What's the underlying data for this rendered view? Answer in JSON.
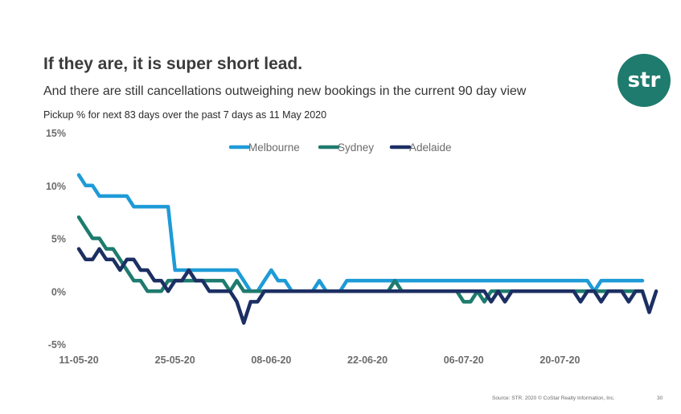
{
  "slide": {
    "title": "If they are, it is super short lead.",
    "subtitle": "And there are still cancellations outweighing new bookings in the current 90 day view",
    "caption": "Pickup % for next 83 days over the past 7 days as 11 May 2020",
    "logo_text": "str",
    "logo_color": "#1e7b6e",
    "source": "Source: STR. 2020 © CoStar Realty Information, Inc.",
    "page_number": "30"
  },
  "chart_data": {
    "type": "line",
    "title": "",
    "xlabel": "",
    "ylabel": "",
    "ylim": [
      -5,
      15
    ],
    "yticks": [
      "15%",
      "10%",
      "5%",
      "0%",
      "-5%"
    ],
    "yticks_values": [
      15,
      10,
      5,
      0,
      -5
    ],
    "x_tick_labels": [
      "11-05-20",
      "25-05-20",
      "08-06-20",
      "22-06-20",
      "06-07-20",
      "20-07-20"
    ],
    "x_range": [
      "11-05-20",
      "01-08-20"
    ],
    "grid": false,
    "legend_position": "top-center",
    "series": [
      {
        "name": "Melbourne",
        "color": "#1e9bd7",
        "values": [
          11,
          10,
          10,
          9,
          9,
          9,
          9,
          9,
          8,
          8,
          8,
          8,
          8,
          8,
          2,
          2,
          2,
          2,
          2,
          2,
          2,
          2,
          2,
          2,
          1,
          0,
          0,
          1,
          2,
          1,
          1,
          0,
          0,
          0,
          0,
          1,
          0,
          0,
          0,
          1,
          1,
          1,
          1,
          1,
          1,
          1,
          1,
          1,
          1,
          1,
          1,
          1,
          1,
          1,
          1,
          1,
          1,
          1,
          1,
          1,
          1,
          1,
          1,
          1,
          1,
          1,
          1,
          1,
          1,
          1,
          1,
          1,
          1,
          1,
          1,
          0,
          1,
          1,
          1,
          1,
          1,
          1,
          1
        ]
      },
      {
        "name": "Sydney",
        "color": "#1e7b6e",
        "values": [
          7,
          6,
          5,
          5,
          4,
          4,
          3,
          2,
          1,
          1,
          0,
          0,
          0,
          1,
          1,
          1,
          1,
          1,
          1,
          1,
          1,
          1,
          0,
          1,
          0,
          0,
          0,
          0,
          0,
          0,
          0,
          0,
          0,
          0,
          0,
          0,
          0,
          0,
          0,
          0,
          0,
          0,
          0,
          0,
          0,
          0,
          1,
          0,
          0,
          0,
          0,
          0,
          0,
          0,
          0,
          0,
          -1,
          -1,
          0,
          -1,
          0,
          0,
          0,
          0,
          0,
          0,
          0,
          0,
          0,
          0,
          0,
          0,
          0,
          0,
          0,
          0,
          0,
          0,
          0,
          0,
          0,
          0,
          0
        ]
      },
      {
        "name": "Adelaide",
        "color": "#1c2f63",
        "values": [
          4,
          3,
          3,
          4,
          3,
          3,
          2,
          3,
          3,
          2,
          2,
          1,
          1,
          0,
          1,
          1,
          2,
          1,
          1,
          0,
          0,
          0,
          0,
          -1,
          -3,
          -1,
          -1,
          0,
          0,
          0,
          0,
          0,
          0,
          0,
          0,
          0,
          0,
          0,
          0,
          0,
          0,
          0,
          0,
          0,
          0,
          0,
          0,
          0,
          0,
          0,
          0,
          0,
          0,
          0,
          0,
          0,
          0,
          0,
          0,
          0,
          -1,
          0,
          -1,
          0,
          0,
          0,
          0,
          0,
          0,
          0,
          0,
          0,
          0,
          -1,
          0,
          0,
          -1,
          0,
          0,
          0,
          -1,
          0,
          0,
          -2,
          0
        ]
      }
    ]
  }
}
